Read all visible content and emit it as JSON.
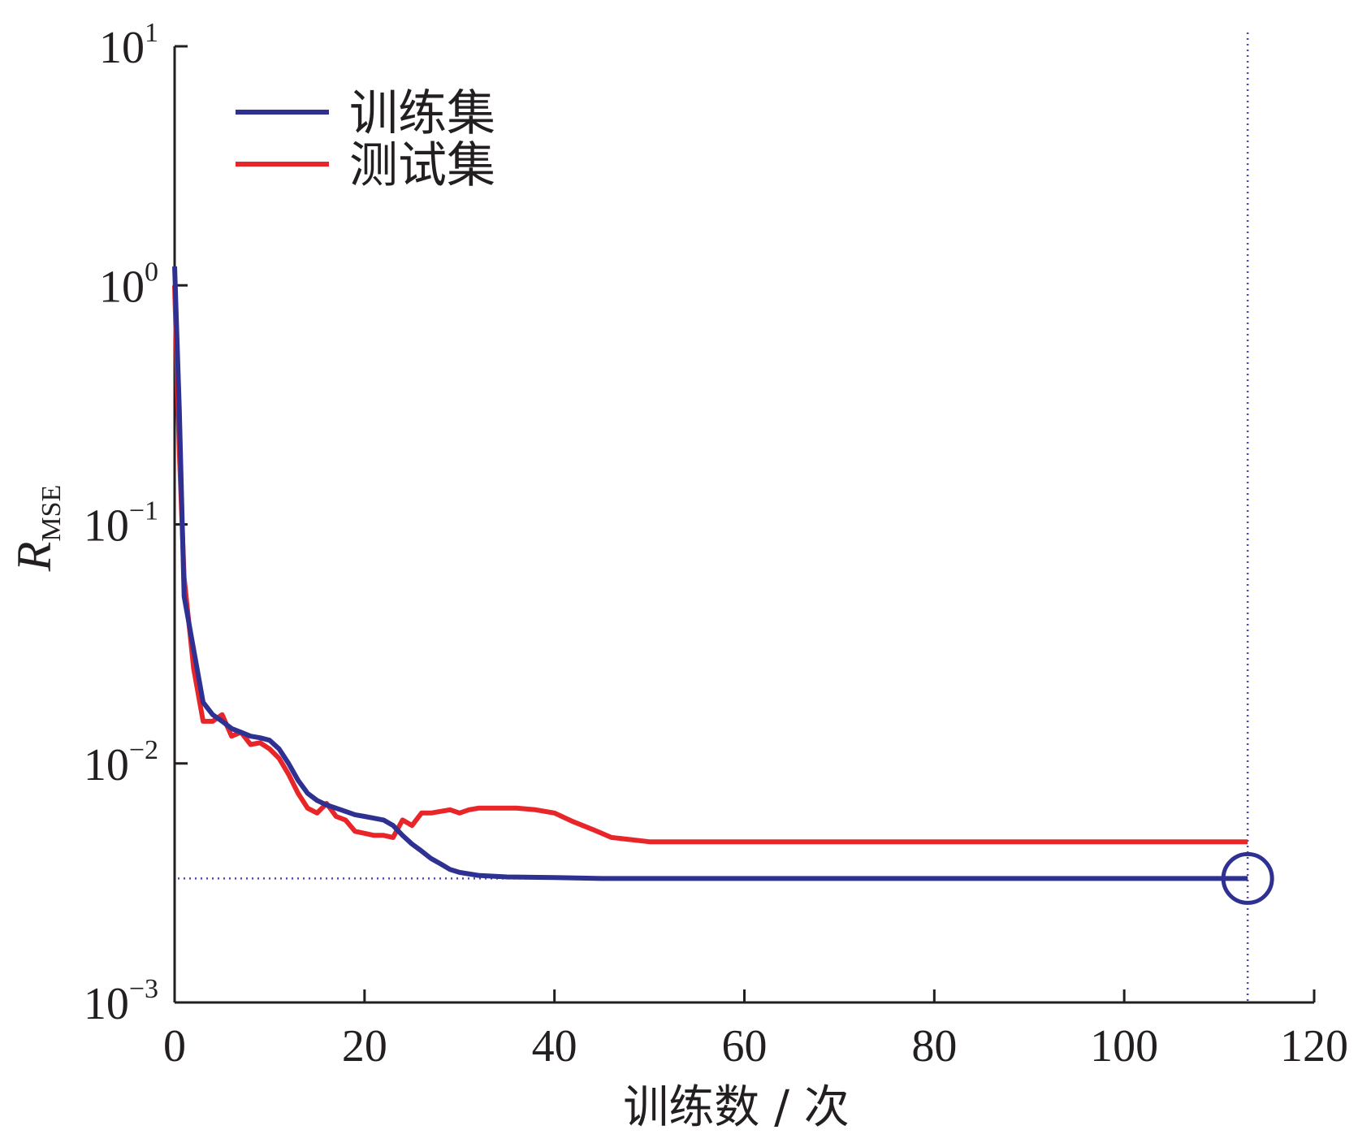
{
  "chart_data": {
    "type": "line",
    "xlabel": "训练数 / 次",
    "ylabel": {
      "main": "R",
      "sub": "MSE"
    },
    "xlim": [
      0,
      120
    ],
    "ylim": [
      0.001,
      10
    ],
    "yscale": "log",
    "xticks": [
      {
        "value": 0,
        "label": "0"
      },
      {
        "value": 20,
        "label": "20"
      },
      {
        "value": 40,
        "label": "40"
      },
      {
        "value": 60,
        "label": "60"
      },
      {
        "value": 80,
        "label": "80"
      },
      {
        "value": 100,
        "label": "100"
      },
      {
        "value": 120,
        "label": "120"
      }
    ],
    "yticks": [
      {
        "value": 10,
        "base": "10",
        "exp": "1"
      },
      {
        "value": 1,
        "base": "10",
        "exp": "0"
      },
      {
        "value": 0.1,
        "base": "10",
        "exp": "−1"
      },
      {
        "value": 0.01,
        "base": "10",
        "exp": "−2"
      },
      {
        "value": 0.001,
        "base": "10",
        "exp": "−3"
      }
    ],
    "grid": false,
    "legend_position": "top-left",
    "series": [
      {
        "name": "训练集",
        "color": "#2e3192",
        "points": [
          [
            0,
            1.2
          ],
          [
            0.5,
            0.3
          ],
          [
            1,
            0.05
          ],
          [
            2,
            0.03
          ],
          [
            3,
            0.018
          ],
          [
            4,
            0.016
          ],
          [
            5,
            0.015
          ],
          [
            6,
            0.014
          ],
          [
            7,
            0.0135
          ],
          [
            8,
            0.013
          ],
          [
            9,
            0.0128
          ],
          [
            10,
            0.0125
          ],
          [
            11,
            0.0115
          ],
          [
            12,
            0.01
          ],
          [
            13,
            0.0085
          ],
          [
            14,
            0.0075
          ],
          [
            15,
            0.007
          ],
          [
            16,
            0.0067
          ],
          [
            17,
            0.0065
          ],
          [
            18,
            0.0063
          ],
          [
            19,
            0.0061
          ],
          [
            20,
            0.006
          ],
          [
            21,
            0.0059
          ],
          [
            22,
            0.0058
          ],
          [
            23,
            0.0055
          ],
          [
            24,
            0.005
          ],
          [
            25,
            0.0046
          ],
          [
            26,
            0.0043
          ],
          [
            27,
            0.004
          ],
          [
            28,
            0.0038
          ],
          [
            29,
            0.0036
          ],
          [
            30,
            0.0035
          ],
          [
            32,
            0.0034
          ],
          [
            35,
            0.00335
          ],
          [
            40,
            0.00333
          ],
          [
            45,
            0.0033
          ],
          [
            60,
            0.0033
          ],
          [
            80,
            0.0033
          ],
          [
            100,
            0.0033
          ],
          [
            113,
            0.0033
          ]
        ]
      },
      {
        "name": "测试集",
        "color": "#e8262a",
        "points": [
          [
            0,
            1.0
          ],
          [
            0.5,
            0.2
          ],
          [
            1,
            0.06
          ],
          [
            2,
            0.025
          ],
          [
            3,
            0.015
          ],
          [
            4,
            0.015
          ],
          [
            5,
            0.016
          ],
          [
            6,
            0.013
          ],
          [
            7,
            0.0135
          ],
          [
            8,
            0.012
          ],
          [
            9,
            0.0122
          ],
          [
            10,
            0.0115
          ],
          [
            11,
            0.0105
          ],
          [
            12,
            0.009
          ],
          [
            13,
            0.0075
          ],
          [
            14,
            0.0065
          ],
          [
            15,
            0.0062
          ],
          [
            16,
            0.0068
          ],
          [
            17,
            0.006
          ],
          [
            18,
            0.0058
          ],
          [
            19,
            0.0052
          ],
          [
            20,
            0.0051
          ],
          [
            21,
            0.005
          ],
          [
            22,
            0.005
          ],
          [
            23,
            0.0049
          ],
          [
            24,
            0.0058
          ],
          [
            25,
            0.0055
          ],
          [
            26,
            0.0062
          ],
          [
            27,
            0.0062
          ],
          [
            28,
            0.0063
          ],
          [
            29,
            0.0064
          ],
          [
            30,
            0.0062
          ],
          [
            31,
            0.0064
          ],
          [
            32,
            0.0065
          ],
          [
            34,
            0.0065
          ],
          [
            36,
            0.0065
          ],
          [
            38,
            0.0064
          ],
          [
            40,
            0.0062
          ],
          [
            42,
            0.0057
          ],
          [
            44,
            0.0053
          ],
          [
            46,
            0.0049
          ],
          [
            48,
            0.0048
          ],
          [
            50,
            0.0047
          ],
          [
            55,
            0.0047
          ],
          [
            60,
            0.0047
          ],
          [
            80,
            0.0047
          ],
          [
            100,
            0.0047
          ],
          [
            113,
            0.0047
          ]
        ]
      }
    ],
    "best_point": {
      "x": 113,
      "y": 0.0033
    }
  },
  "colors": {
    "axis": "#231f20",
    "marker": "#2e3192",
    "reference": "#4a4ab0"
  }
}
